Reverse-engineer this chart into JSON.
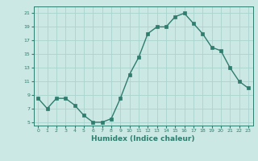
{
  "x": [
    0,
    1,
    2,
    3,
    4,
    5,
    6,
    7,
    8,
    9,
    10,
    11,
    12,
    13,
    14,
    15,
    16,
    17,
    18,
    19,
    20,
    21,
    22,
    23
  ],
  "y": [
    8.5,
    7,
    8.5,
    8.5,
    7.5,
    6,
    5,
    5,
    5.5,
    8.5,
    12,
    14.5,
    18,
    19,
    19,
    20.5,
    21,
    19.5,
    18,
    16,
    15.5,
    13,
    11,
    10
  ],
  "line_color": "#2e7d6e",
  "marker_color": "#2e7d6e",
  "bg_color": "#cce8e4",
  "grid_color": "#aad4cf",
  "axis_color": "#2e7d6e",
  "tick_label_color": "#2e7d6e",
  "xlabel": "Humidex (Indice chaleur)",
  "yticks": [
    5,
    7,
    9,
    11,
    13,
    15,
    17,
    19,
    21
  ],
  "xticks": [
    0,
    1,
    2,
    3,
    4,
    5,
    6,
    7,
    8,
    9,
    10,
    11,
    12,
    13,
    14,
    15,
    16,
    17,
    18,
    19,
    20,
    21,
    22,
    23
  ],
  "xlim": [
    -0.5,
    23.5
  ],
  "ylim": [
    4.5,
    22.0
  ]
}
